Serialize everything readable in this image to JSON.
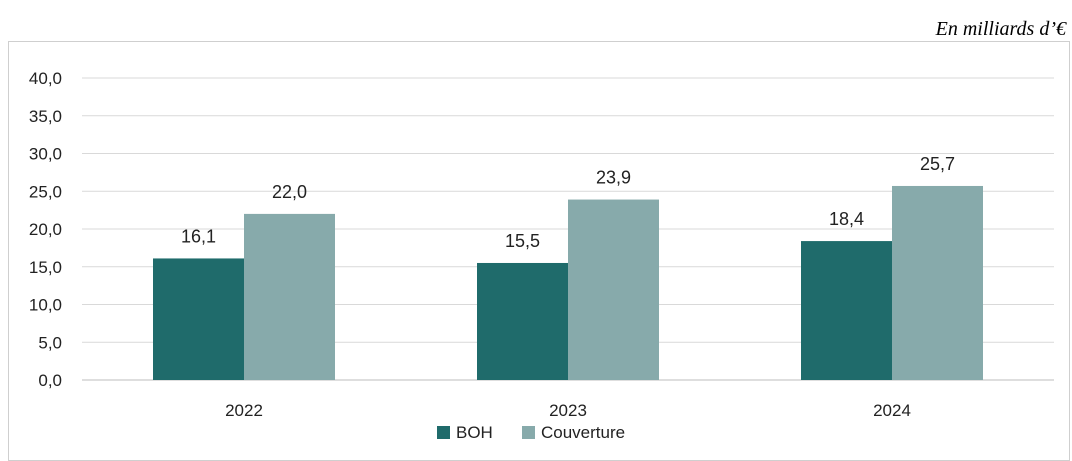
{
  "unit_note": "En milliards d’€",
  "chart_data": {
    "type": "bar",
    "categories": [
      "2022",
      "2023",
      "2024"
    ],
    "series": [
      {
        "name": "BOH",
        "values": [
          16.1,
          15.5,
          18.4
        ],
        "color": "#1f6b6b"
      },
      {
        "name": "Couverture",
        "values": [
          22.0,
          23.9,
          25.7
        ],
        "color": "#87aaab"
      }
    ],
    "ylim": [
      0,
      40
    ],
    "yticks": [
      "0,0",
      "5,0",
      "10,0",
      "15,0",
      "20,0",
      "25,0",
      "30,0",
      "35,0",
      "40,0"
    ],
    "data_labels": [
      [
        "16,1",
        "15,5",
        "18,4"
      ],
      [
        "22,0",
        "23,9",
        "25,7"
      ]
    ],
    "grid": true,
    "legend_position": "bottom"
  }
}
